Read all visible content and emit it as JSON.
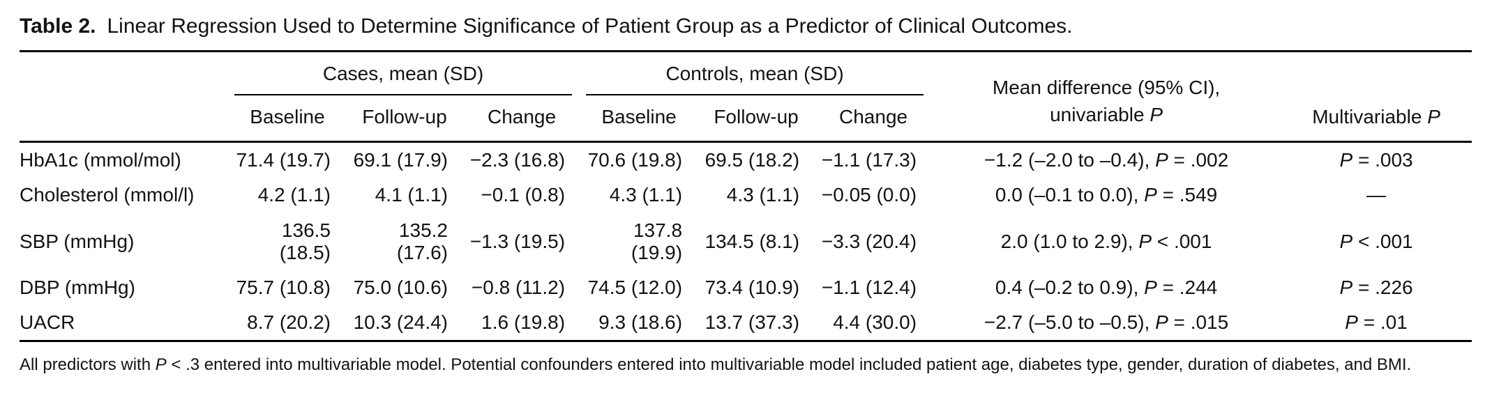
{
  "title": {
    "label": "Table 2.",
    "text": "Linear Regression Used to Determine Significance of Patient Group as a Predictor of Clinical Outcomes."
  },
  "header": {
    "cases_group": "Cases, mean (SD)",
    "controls_group": "Controls, mean (SD)",
    "mean_diff_line1": "Mean difference (95% CI),",
    "mean_diff_line2": "univariable P",
    "multivariable": "Multivariable P",
    "sub": {
      "baseline": "Baseline",
      "followup": "Follow-up",
      "change": "Change"
    }
  },
  "rows": [
    {
      "label": "HbA1c (mmol/mol)",
      "cases_baseline": "71.4 (19.7)",
      "cases_followup": "69.1 (17.9)",
      "cases_change": "−2.3 (16.8)",
      "controls_baseline": "70.6 (19.8)",
      "controls_followup": "69.5 (18.2)",
      "controls_change": "−1.1 (17.3)",
      "mean_difference": "−1.2 (–2.0 to –0.4), P = .002",
      "multivariable_p": "P = .003"
    },
    {
      "label": "Cholesterol (mmol/l)",
      "cases_baseline": "4.2 (1.1)",
      "cases_followup": "4.1 (1.1)",
      "cases_change": "−0.1 (0.8)",
      "controls_baseline": "4.3 (1.1)",
      "controls_followup": "4.3 (1.1)",
      "controls_change": "−0.05 (0.0)",
      "mean_difference": "0.0 (–0.1 to 0.0), P = .549",
      "multivariable_p": "—"
    },
    {
      "label": "SBP (mmHg)",
      "cases_baseline": "136.5 (18.5)",
      "cases_followup": "135.2 (17.6)",
      "cases_change": "−1.3 (19.5)",
      "controls_baseline": "137.8 (19.9)",
      "controls_followup": "134.5 (8.1)",
      "controls_change": "−3.3 (20.4)",
      "mean_difference": "2.0 (1.0 to 2.9), P < .001",
      "multivariable_p": "P < .001"
    },
    {
      "label": "DBP (mmHg)",
      "cases_baseline": "75.7 (10.8)",
      "cases_followup": "75.0 (10.6)",
      "cases_change": "−0.8 (11.2)",
      "controls_baseline": "74.5 (12.0)",
      "controls_followup": "73.4 (10.9)",
      "controls_change": "−1.1 (12.4)",
      "mean_difference": "0.4 (–0.2 to 0.9), P = .244",
      "multivariable_p": "P = .226"
    },
    {
      "label": "UACR",
      "cases_baseline": "8.7 (20.2)",
      "cases_followup": "10.3 (24.4)",
      "cases_change": "1.6 (19.8)",
      "controls_baseline": "9.3 (18.6)",
      "controls_followup": "13.7 (37.3)",
      "controls_change": "4.4 (30.0)",
      "mean_difference": "−2.7 (–5.0 to –0.5), P = .015",
      "multivariable_p": "P = .01"
    }
  ],
  "footnote": "All predictors with P < .3 entered into multivariable model. Potential confounders entered into multivariable model included patient age, diabetes type, gender, duration of diabetes, and BMI."
}
